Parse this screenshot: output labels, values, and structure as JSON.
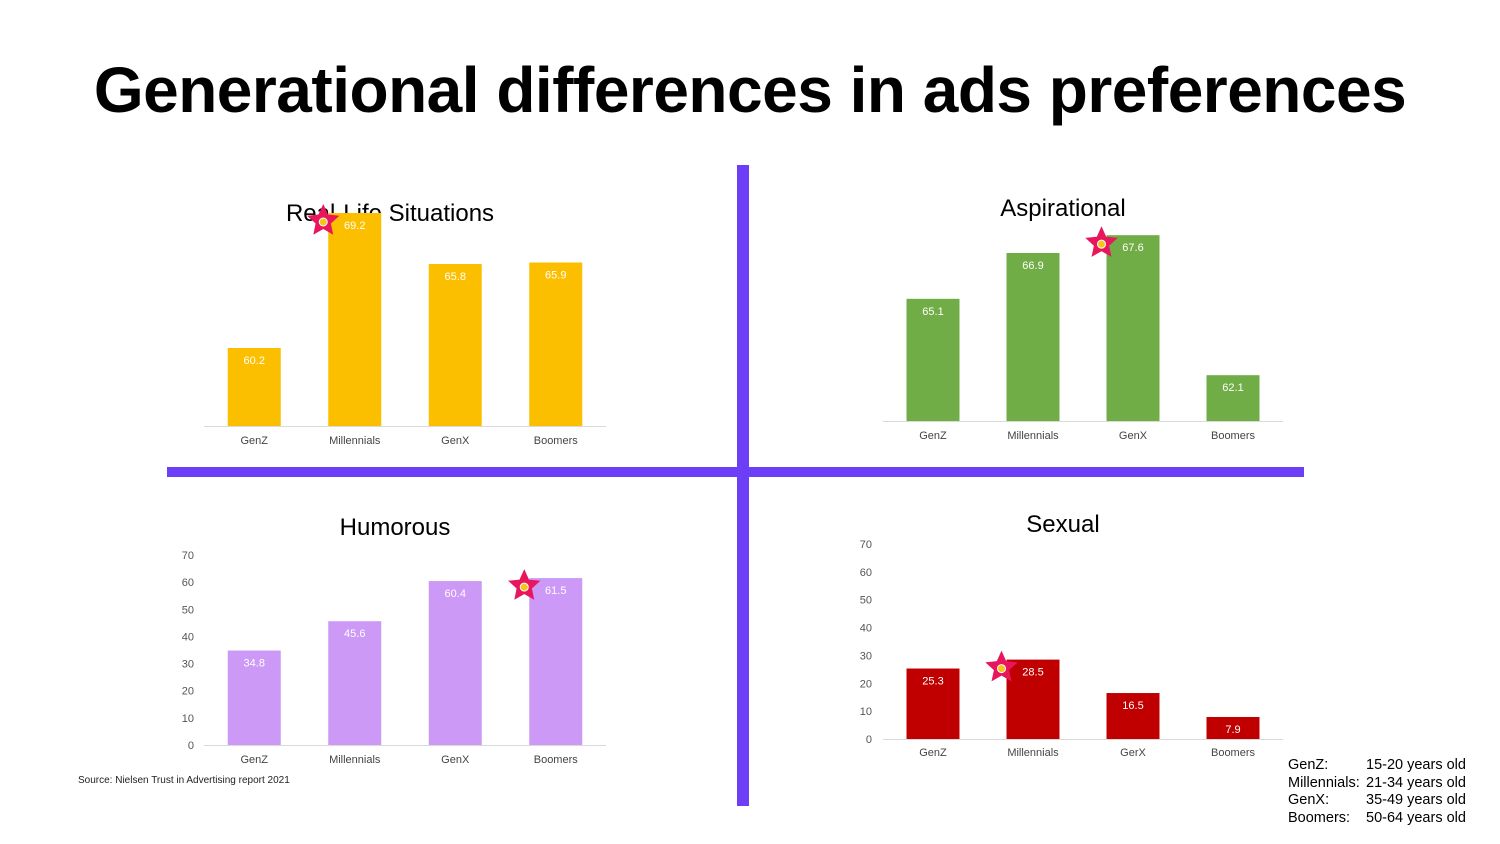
{
  "title": "Generational differences in ads preferences",
  "source": "Source: Nielsen Trust in Advertising report 2021",
  "colors": {
    "divider": "#6c3ef5",
    "star": "#e8175d",
    "star_center": "#f5c518"
  },
  "age_ranges": [
    {
      "generation": "GenZ:",
      "range": "15-20 years old"
    },
    {
      "generation": "Millennials:",
      "range": "21-34 years old"
    },
    {
      "generation": "GenX:",
      "range": "35-49 years old"
    },
    {
      "generation": "Boomers:",
      "range": "50-64 years old"
    }
  ],
  "chart_data": [
    {
      "type": "bar",
      "title": "Real-Life Situations",
      "categories": [
        "GenZ",
        "Millennials",
        "GenX",
        "Boomers"
      ],
      "values": [
        60.2,
        69.2,
        65.8,
        65.9
      ],
      "color": "#fbbf00",
      "highlight_index": 1,
      "ylim": [
        55,
        70
      ],
      "y_ticks": [],
      "grid": false
    },
    {
      "type": "bar",
      "title": "Aspirational",
      "categories": [
        "GenZ",
        "Millennials",
        "GenX",
        "Boomers"
      ],
      "values": [
        65.1,
        66.9,
        67.6,
        62.1
      ],
      "color": "#70ad47",
      "highlight_index": 2,
      "ylim": [
        60.3,
        68
      ],
      "y_ticks": [],
      "grid": false
    },
    {
      "type": "bar",
      "title": "Humorous",
      "categories": [
        "GenZ",
        "Millennials",
        "GenX",
        "Boomers"
      ],
      "values": [
        34.8,
        45.6,
        60.4,
        61.5
      ],
      "color": "#cc99f7",
      "highlight_index": 3,
      "ylim": [
        0,
        70
      ],
      "y_ticks": [
        0,
        10,
        20,
        30,
        40,
        50,
        60,
        70
      ],
      "grid": false
    },
    {
      "type": "bar",
      "title": "Sexual",
      "categories": [
        "GenZ",
        "Millennials",
        "GerX",
        "Boomers"
      ],
      "values": [
        25.3,
        28.5,
        16.5,
        7.9
      ],
      "color": "#c00000",
      "highlight_index": 1,
      "ylim": [
        0,
        70
      ],
      "y_ticks": [
        0,
        10,
        20,
        30,
        40,
        50,
        60,
        70
      ],
      "grid": false
    }
  ]
}
